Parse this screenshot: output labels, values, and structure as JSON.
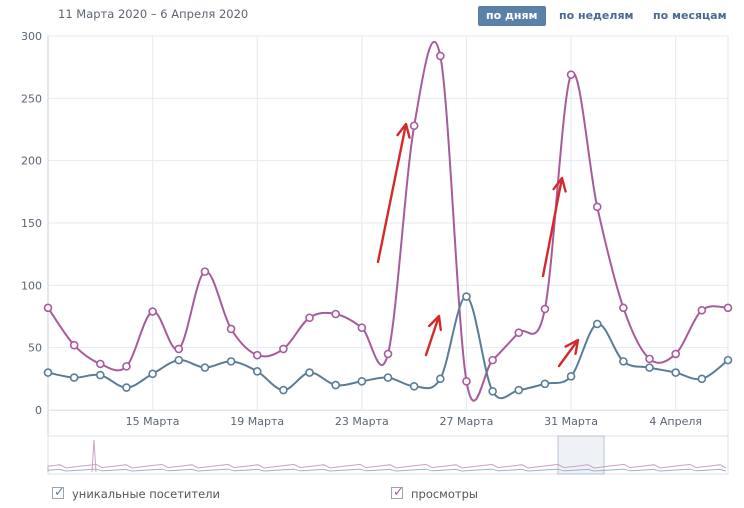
{
  "header": {
    "date_range": "11 Марта 2020 – 6 Апреля 2020",
    "periods": [
      {
        "label": "по дням",
        "active": true
      },
      {
        "label": "по неделям",
        "active": false
      },
      {
        "label": "по месяцам",
        "active": false
      }
    ]
  },
  "legend": {
    "visitors": "уникальные посетители",
    "views": "просмотры"
  },
  "colors": {
    "visitors": "#5a7d96",
    "views": "#a85b9a",
    "grid": "#e6e9f5",
    "arrow": "#d42a2a"
  },
  "chart_data": {
    "type": "line",
    "y_ticks": [
      0,
      50,
      100,
      150,
      200,
      250,
      300
    ],
    "ylim": [
      0,
      300
    ],
    "x_labels": [
      {
        "day": 4,
        "label": "15 Марта"
      },
      {
        "day": 8,
        "label": "19 Марта"
      },
      {
        "day": 12,
        "label": "23 Марта"
      },
      {
        "day": 16,
        "label": "27 Марта"
      },
      {
        "day": 20,
        "label": "31 Марта"
      },
      {
        "day": 24,
        "label": "4 Апреля"
      }
    ],
    "days": [
      "11.03",
      "12.03",
      "13.03",
      "14.03",
      "15.03",
      "16.03",
      "17.03",
      "18.03",
      "19.03",
      "20.03",
      "21.03",
      "22.03",
      "23.03",
      "24.03",
      "25.03",
      "26.03",
      "27.03",
      "28.03",
      "29.03",
      "30.03",
      "31.03",
      "01.04",
      "02.04",
      "03.04",
      "04.04",
      "05.04",
      "06.04"
    ],
    "series": [
      {
        "name": "просмотры",
        "values": [
          82,
          52,
          37,
          35,
          79,
          49,
          111,
          65,
          44,
          49,
          74,
          77,
          66,
          45,
          228,
          284,
          23,
          40,
          62,
          81,
          269,
          163,
          82,
          41,
          45,
          80,
          82
        ]
      },
      {
        "name": "уникальные посетители",
        "values": [
          30,
          26,
          28,
          18,
          29,
          40,
          34,
          39,
          31,
          16,
          30,
          20,
          23,
          26,
          19,
          25,
          91,
          15,
          16,
          21,
          27,
          69,
          39,
          34,
          30,
          25,
          40
        ]
      }
    ]
  }
}
